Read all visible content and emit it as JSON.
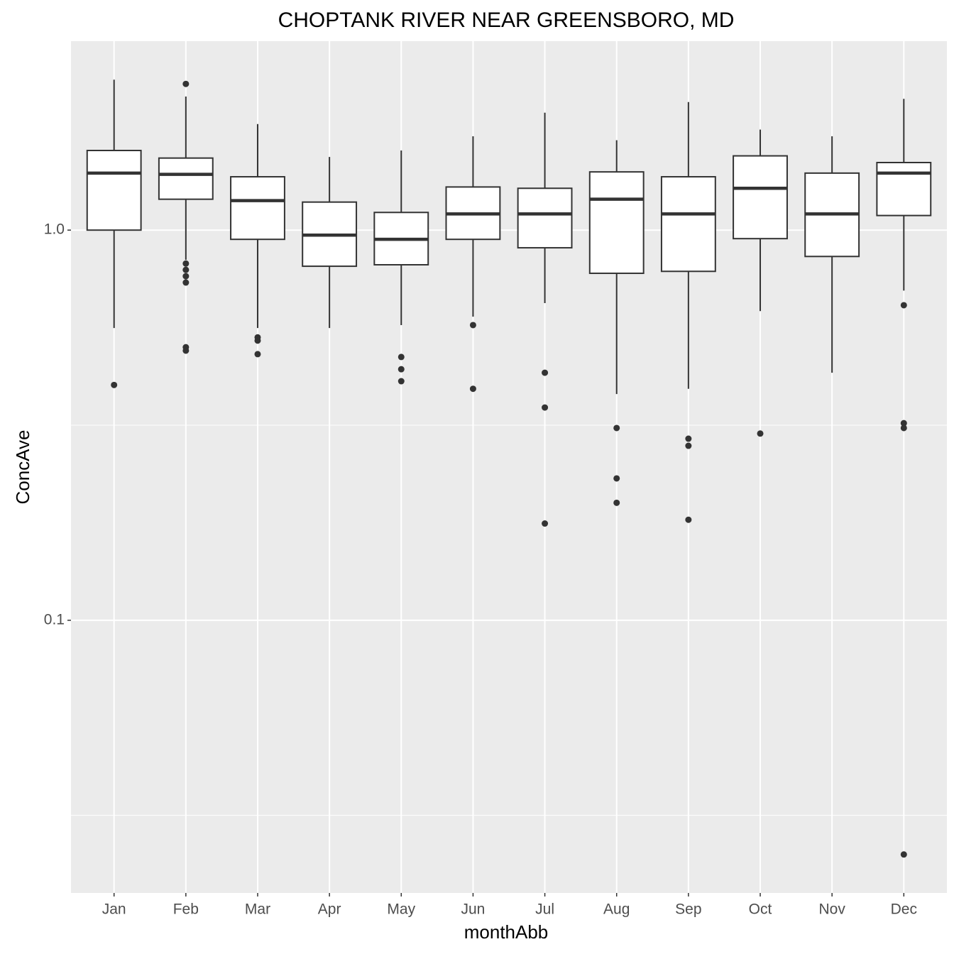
{
  "chart_data": {
    "type": "box",
    "title": "CHOPTANK RIVER NEAR GREENSBORO, MD",
    "x_label": "monthAbb",
    "y_label": "ConcAve",
    "categories": [
      "Jan",
      "Feb",
      "Mar",
      "Apr",
      "May",
      "Jun",
      "Jul",
      "Aug",
      "Sep",
      "Oct",
      "Nov",
      "Dec"
    ],
    "boxes": [
      {
        "whisker_low": 0.561,
        "q1": 1.0,
        "median": 1.4,
        "q3": 1.6,
        "whisker_high": 2.43,
        "outliers": [
          0.401
        ]
      },
      {
        "whisker_low": 0.839,
        "q1": 1.2,
        "median": 1.39,
        "q3": 1.53,
        "whisker_high": 2.2,
        "outliers": [
          2.37,
          0.821,
          0.791,
          0.762,
          0.734,
          0.501,
          0.491
        ]
      },
      {
        "whisker_low": 0.561,
        "q1": 0.947,
        "median": 1.19,
        "q3": 1.37,
        "whisker_high": 1.87,
        "outliers": [
          0.531,
          0.521,
          0.481
        ]
      },
      {
        "whisker_low": 0.561,
        "q1": 0.808,
        "median": 0.971,
        "q3": 1.18,
        "whisker_high": 1.54,
        "outliers": []
      },
      {
        "whisker_low": 0.571,
        "q1": 0.815,
        "median": 0.947,
        "q3": 1.11,
        "whisker_high": 1.6,
        "outliers": [
          0.473,
          0.44,
          0.41
        ]
      },
      {
        "whisker_low": 0.6,
        "q1": 0.947,
        "median": 1.1,
        "q3": 1.29,
        "whisker_high": 1.74,
        "outliers": [
          0.571,
          0.392
        ]
      },
      {
        "whisker_low": 0.65,
        "q1": 0.901,
        "median": 1.1,
        "q3": 1.28,
        "whisker_high": 2.0,
        "outliers": [
          0.431,
          0.351,
          0.177
        ]
      },
      {
        "whisker_low": 0.38,
        "q1": 0.775,
        "median": 1.2,
        "q3": 1.41,
        "whisker_high": 1.7,
        "outliers": [
          0.311,
          0.231,
          0.2
        ]
      },
      {
        "whisker_low": 0.392,
        "q1": 0.784,
        "median": 1.1,
        "q3": 1.37,
        "whisker_high": 2.13,
        "outliers": [
          0.292,
          0.28,
          0.181
        ]
      },
      {
        "whisker_low": 0.62,
        "q1": 0.951,
        "median": 1.28,
        "q3": 1.55,
        "whisker_high": 1.81,
        "outliers": [
          0.301
        ]
      },
      {
        "whisker_low": 0.431,
        "q1": 0.856,
        "median": 1.1,
        "q3": 1.4,
        "whisker_high": 1.74,
        "outliers": []
      },
      {
        "whisker_low": 0.7,
        "q1": 1.09,
        "median": 1.4,
        "q3": 1.49,
        "whisker_high": 2.17,
        "outliers": [
          0.642,
          0.32,
          0.311,
          0.0251
        ]
      }
    ],
    "ylim": [
      0.02,
      3.05
    ],
    "yticks": [
      0.1,
      {
        "value": 1,
        "label": "1.0"
      }
    ],
    "log_scale": true,
    "grid": true,
    "minor_grid": true,
    "box_fill": "#ffffff",
    "color": "#333333",
    "panel_color": "#ebebeb"
  }
}
